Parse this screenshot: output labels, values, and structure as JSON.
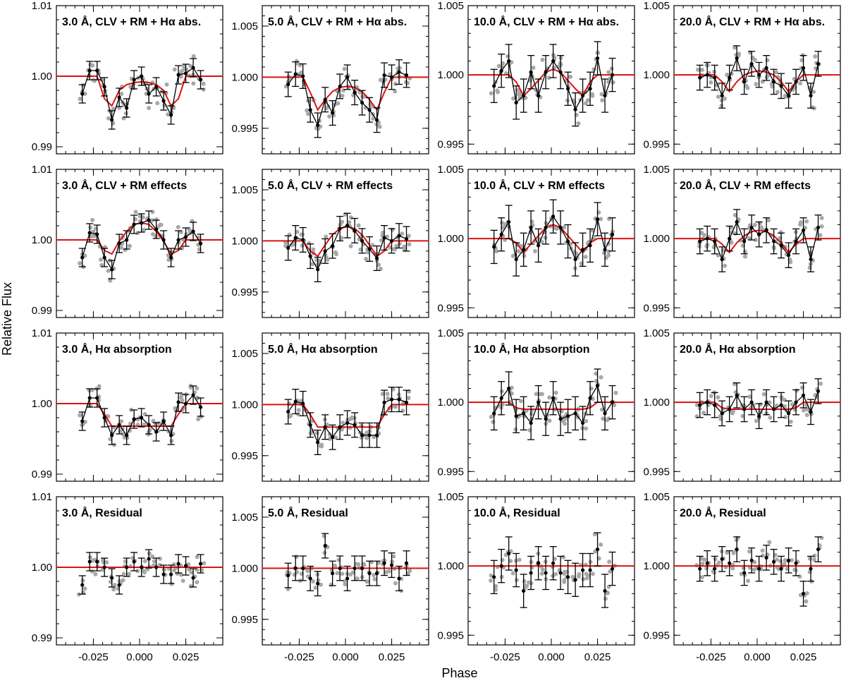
{
  "chart_data": {
    "type": "scatter",
    "title": "",
    "xlabel": "Phase",
    "ylabel": "Relative Flux",
    "xlim": [
      -0.045,
      0.045
    ],
    "xticks": [
      -0.025,
      0.0,
      0.025
    ],
    "xtick_labels": [
      "-0.025",
      "0.000",
      "0.025"
    ],
    "bin_phases": [
      -0.031,
      -0.027,
      -0.023,
      -0.019,
      -0.015,
      -0.011,
      -0.007,
      -0.003,
      0.001,
      0.005,
      0.009,
      0.013,
      0.017,
      0.021,
      0.025,
      0.029,
      0.033
    ],
    "columns": [
      {
        "passband": "3.0 Å",
        "ylim": [
          0.989,
          1.01
        ],
        "yticks": [
          0.99,
          1.0,
          1.01
        ],
        "ytick_labels": [
          "0.99",
          "1.00",
          "1.01"
        ],
        "err": 0.0013,
        "rows": [
          {
            "label": "3.0 Å, CLV + RM + Hα abs.",
            "model": [
              1.0,
              1.0,
              1.0,
              0.9968,
              0.9958,
              0.998,
              0.9988,
              0.9991,
              0.9992,
              0.9991,
              0.9988,
              0.998,
              0.9958,
              0.9968,
              1.0,
              1.0,
              1.0
            ],
            "binned": [
              0.9975,
              1.0008,
              1.0008,
              0.9985,
              0.9938,
              0.997,
              0.9955,
              0.9995,
              1.0,
              0.9975,
              0.9985,
              0.9965,
              0.9945,
              1.0002,
              1.0004,
              1.0012,
              0.9995
            ]
          },
          {
            "label": "3.0 Å, CLV + RM effects",
            "model": [
              1.0,
              1.0,
              1.0,
              0.9985,
              0.998,
              0.9998,
              1.0012,
              1.0022,
              1.0024,
              1.0022,
              1.0012,
              0.9998,
              0.998,
              0.9985,
              1.0,
              1.0,
              1.0
            ],
            "binned": [
              0.9975,
              1.001,
              1.0008,
              0.9975,
              0.9958,
              0.9995,
              1.0,
              1.0022,
              1.0024,
              1.0028,
              1.0015,
              1.0,
              0.9975,
              1.0,
              1.0004,
              1.0012,
              0.9995
            ]
          },
          {
            "label": "3.0 Å, Hα absorption",
            "model": [
              1.0,
              1.0,
              1.0,
              0.9985,
              0.9968,
              0.9968,
              0.9968,
              0.9968,
              0.9968,
              0.9968,
              0.9968,
              0.9968,
              0.9968,
              0.9985,
              1.0,
              1.0,
              1.0
            ],
            "binned": [
              0.9975,
              1.0008,
              1.0008,
              0.998,
              0.9955,
              0.997,
              0.9955,
              0.9978,
              0.998,
              0.997,
              0.996,
              0.9975,
              0.9955,
              1.0002,
              1.0,
              1.0012,
              0.9995
            ]
          },
          {
            "label": "3.0 Å, Residual",
            "model": [
              1.0,
              1.0,
              1.0,
              1.0,
              1.0,
              1.0,
              1.0,
              1.0,
              1.0,
              1.0,
              1.0,
              1.0,
              1.0,
              1.0,
              1.0,
              1.0,
              1.0
            ],
            "binned": [
              0.9975,
              1.0008,
              1.0008,
              1.0,
              0.9985,
              0.9975,
              1.0,
              1.0008,
              1.0,
              1.0012,
              1.0,
              0.999,
              0.999,
              1.0005,
              1.0002,
              0.9985,
              1.0005
            ]
          }
        ]
      },
      {
        "passband": "5.0 Å",
        "ylim": [
          0.9925,
          1.007
        ],
        "yticks": [
          0.995,
          1.0,
          1.005
        ],
        "ytick_labels": [
          "0.995",
          "1.000",
          "1.005"
        ],
        "err": 0.0012,
        "rows": [
          {
            "label": "5.0 Å, CLV + RM + Hα abs.",
            "model": [
              1.0,
              1.0,
              1.0,
              0.9985,
              0.9968,
              0.9978,
              0.9986,
              0.999,
              0.9991,
              0.999,
              0.9986,
              0.9978,
              0.9968,
              0.9985,
              1.0,
              1.0,
              1.0
            ],
            "binned": [
              0.9993,
              1.0003,
              1.0001,
              0.9968,
              0.9953,
              0.9978,
              0.9965,
              0.9991,
              1.0,
              0.9985,
              0.9975,
              0.9968,
              0.9958,
              1.0002,
              1.0,
              1.0005,
              1.0002
            ]
          },
          {
            "label": "5.0 Å, CLV + RM effects",
            "model": [
              1.0,
              1.0,
              1.0,
              0.999,
              0.9985,
              0.9996,
              1.0006,
              1.0012,
              1.0014,
              1.0012,
              1.0006,
              0.9996,
              0.9985,
              0.999,
              1.0,
              1.0,
              1.0
            ],
            "binned": [
              0.9993,
              1.0003,
              1.0001,
              0.9985,
              0.9972,
              0.999,
              0.9995,
              1.0012,
              1.0015,
              1.001,
              1.0,
              0.9992,
              0.9983,
              1.0003,
              1.0,
              1.0005,
              1.0002
            ]
          },
          {
            "label": "5.0 Å, Hα absorption",
            "model": [
              1.0,
              1.0,
              1.0,
              0.999,
              0.9978,
              0.9978,
              0.9978,
              0.9978,
              0.9978,
              0.9978,
              0.9978,
              0.9978,
              0.9978,
              0.999,
              1.0,
              1.0,
              1.0
            ],
            "binned": [
              0.9993,
              1.0003,
              1.0001,
              0.998,
              0.9963,
              0.9978,
              0.9968,
              0.9978,
              0.9982,
              0.998,
              0.997,
              0.997,
              0.997,
              1.0002,
              1.0005,
              1.0005,
              1.0002
            ]
          },
          {
            "label": "5.0 Å, Residual",
            "model": [
              1.0,
              1.0,
              1.0,
              1.0,
              1.0,
              1.0,
              1.0,
              1.0,
              1.0,
              1.0,
              1.0,
              1.0,
              1.0,
              1.0,
              1.0,
              1.0,
              1.0
            ],
            "binned": [
              0.9993,
              1.0,
              1.0,
              0.999,
              0.9985,
              1.0022,
              0.9995,
              1.0,
              0.999,
              1.0,
              1.0,
              0.9995,
              0.9995,
              1.0005,
              1.0003,
              0.999,
              1.0005
            ]
          }
        ]
      },
      {
        "passband": "10.0 Å",
        "ylim": [
          0.9943,
          1.005
        ],
        "yticks": [
          0.995,
          1.0,
          1.005
        ],
        "ytick_labels": [
          "0.995",
          "1.000",
          "1.005"
        ],
        "err": 0.0012,
        "rows": [
          {
            "label": "10.0 Å, CLV + RM + Hα abs.",
            "model": [
              1.0,
              1.0,
              1.0,
              0.9995,
              0.9985,
              0.999,
              0.9996,
              1.0002,
              1.0004,
              1.0002,
              0.9996,
              0.999,
              0.9985,
              0.9995,
              1.0,
              1.0,
              1.0
            ],
            "binned": [
              0.9992,
              1.0003,
              1.001,
              0.998,
              0.9985,
              1.0002,
              0.9985,
              1.0002,
              1.001,
              1.0002,
              0.999,
              0.9975,
              0.9985,
              0.999,
              1.0012,
              0.9985,
              1.0
            ]
          },
          {
            "label": "10.0 Å, CLV + RM effects",
            "model": [
              1.0,
              1.0,
              1.0,
              0.9997,
              0.999,
              0.9996,
              1.0002,
              1.0008,
              1.001,
              1.0008,
              1.0002,
              0.9996,
              0.999,
              0.9997,
              1.0,
              1.0,
              1.0
            ],
            "binned": [
              0.9994,
              1.0003,
              1.0012,
              0.9985,
              0.9992,
              1.0008,
              0.9995,
              1.0008,
              1.0016,
              1.0008,
              0.9998,
              0.9985,
              0.9992,
              0.9995,
              1.0014,
              0.9992,
              1.0003
            ]
          },
          {
            "label": "10.0 Å, Hα absorption",
            "model": [
              1.0,
              1.0,
              1.0,
              0.9996,
              0.9995,
              0.9995,
              0.9995,
              0.9995,
              0.9995,
              0.9995,
              0.9995,
              0.9995,
              0.9995,
              0.9996,
              1.0,
              1.0,
              1.0
            ],
            "binned": [
              0.9992,
              1.0003,
              1.001,
              0.999,
              0.9992,
              0.9985,
              1.0,
              0.9988,
              1.0003,
              0.9988,
              0.999,
              0.9992,
              0.9985,
              1.0003,
              1.0012,
              0.9992,
              1.0
            ]
          },
          {
            "label": "10.0 Å, Residual",
            "model": [
              1.0,
              1.0,
              1.0,
              1.0,
              1.0,
              1.0,
              1.0,
              1.0,
              1.0,
              1.0,
              1.0,
              1.0,
              1.0,
              1.0,
              1.0,
              1.0,
              1.0
            ],
            "binned": [
              0.9992,
              1.0,
              1.0009,
              0.9997,
              0.9982,
              0.9995,
              1.0002,
              0.9995,
              1.0002,
              0.9995,
              0.9992,
              0.999,
              0.9997,
              0.9997,
              1.0012,
              0.9982,
              0.9998
            ]
          }
        ]
      },
      {
        "passband": "20.0 Å",
        "ylim": [
          0.9943,
          1.005
        ],
        "yticks": [
          0.995,
          1.0,
          1.005
        ],
        "ytick_labels": [
          "0.995",
          "1.000",
          "1.005"
        ],
        "err": 0.0009,
        "rows": [
          {
            "label": "20.0 Å, CLV + RM + Hα abs.",
            "model": [
              1.0,
              1.0,
              1.0,
              0.9995,
              0.9988,
              0.9995,
              1.0,
              1.0002,
              1.0003,
              1.0002,
              1.0,
              0.9995,
              0.9988,
              0.9995,
              1.0,
              1.0,
              1.0
            ],
            "binned": [
              0.9998,
              1.0,
              0.9998,
              0.9985,
              0.9998,
              1.0012,
              0.9995,
              1.0008,
              1.0,
              1.0005,
              0.9995,
              0.9992,
              0.9985,
              0.9995,
              1.0005,
              0.9985,
              1.0008
            ]
          },
          {
            "label": "20.0 Å, CLV + RM effects",
            "model": [
              1.0,
              1.0,
              1.0,
              0.9996,
              0.999,
              0.9997,
              1.0002,
              1.0005,
              1.0006,
              1.0005,
              1.0002,
              0.9997,
              0.999,
              0.9996,
              1.0,
              1.0,
              1.0
            ],
            "binned": [
              0.9998,
              1.0,
              0.9998,
              0.9985,
              1.0,
              1.0012,
              0.9998,
              1.0008,
              1.0003,
              1.0006,
              0.9998,
              0.9995,
              0.9988,
              0.9998,
              1.0006,
              0.9985,
              1.0008
            ]
          },
          {
            "label": "20.0 Å, Hα absorption",
            "model": [
              1.0,
              1.0,
              1.0,
              0.9996,
              0.9995,
              0.9995,
              0.9995,
              0.9995,
              0.9995,
              0.9995,
              0.9995,
              0.9995,
              0.9995,
              0.9996,
              1.0,
              1.0,
              1.0
            ],
            "binned": [
              0.9998,
              1.0,
              0.9998,
              0.9992,
              0.9995,
              1.0005,
              0.9995,
              1.0,
              0.999,
              1.0,
              0.9995,
              0.9998,
              0.9992,
              1.0,
              1.0005,
              0.9993,
              1.0008
            ]
          },
          {
            "label": "20.0 Å, Residual",
            "model": [
              1.0,
              1.0,
              1.0,
              1.0,
              1.0,
              1.0,
              1.0,
              1.0,
              1.0,
              1.0,
              1.0,
              1.0,
              1.0,
              1.0,
              1.0,
              1.0,
              1.0
            ],
            "binned": [
              0.9998,
              1.0002,
              0.9998,
              1.0005,
              1.0002,
              1.0012,
              0.9995,
              1.0004,
              0.9998,
              1.0006,
              1.0003,
              0.9998,
              1.0004,
              1.0002,
              0.998,
              0.9998,
              1.0012
            ]
          }
        ]
      }
    ]
  },
  "colors": {
    "model": "#e01010",
    "binned": "#000000",
    "raw": "#a8a8a8",
    "frame": "#000000"
  }
}
